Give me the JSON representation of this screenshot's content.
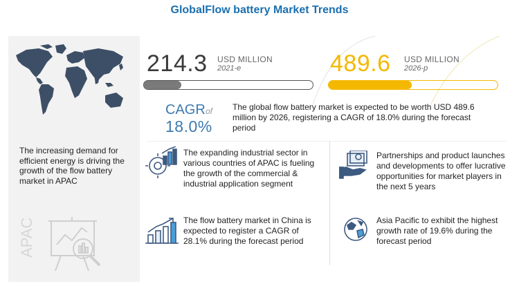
{
  "title": "GlobalFlow battery Market Trends",
  "market_2021": {
    "value": "214.3",
    "unit": "USD MILLION",
    "year": "2021-e",
    "bar_fill": 0.22
  },
  "market_2026": {
    "value": "489.6",
    "unit": "USD MILLION",
    "year": "2026-p",
    "bar_fill": 0.49
  },
  "cagr": {
    "label": "CAGR",
    "of": "of",
    "value": "18.0%"
  },
  "summary": "The global flow battery market is expected to be worth USD 489.6 million by 2026, registering a CAGR of 18.0% during the forecast period",
  "left_text": "The increasing demand for efficient energy is driving the growth of the flow battery market in APAC",
  "apac_label": "APAC",
  "items": [
    "The expanding industrial sector in various countries of APAC is fueling the growth of the commercial & industrial application segment",
    "Partnerships and product launches and developments to offer lucrative opportunities for market players in the next 5 years",
    "The flow battery market in China is expected to register a CAGR of 28.1% during the forecast period",
    "Asia Pacific to exhibit the highest growth rate of 19.6% during the forecast period"
  ],
  "colors": {
    "title": "#1a6fb0",
    "cagr": "#3d7ab0",
    "gold": "#f4b800",
    "dark": "#3a3a3a",
    "grey_fill": "#7a7a7a"
  },
  "icons": [
    "world-map-icon",
    "gear-chart-icon",
    "money-hand-icon",
    "growth-chart-icon",
    "globe-icon",
    "magnifier-chart-icon"
  ]
}
